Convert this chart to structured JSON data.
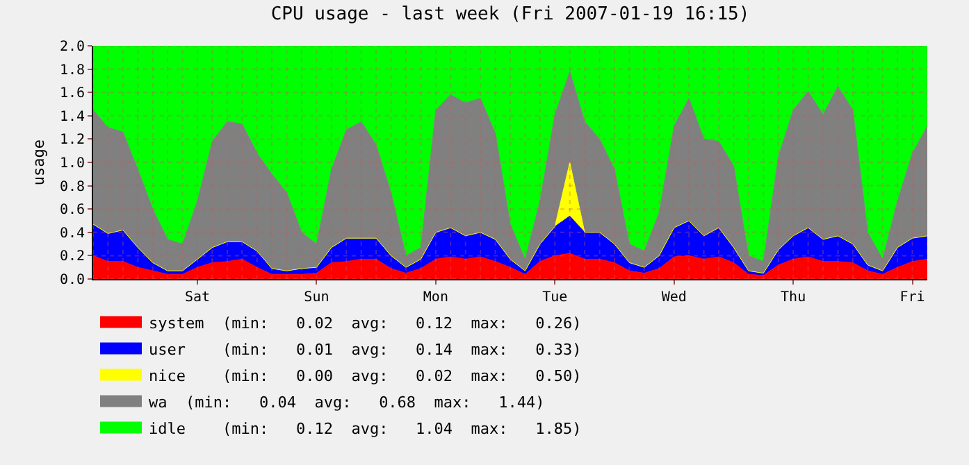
{
  "chart_data": {
    "type": "area",
    "stacked": true,
    "title": "CPU usage - last week (Fri 2007-01-19 16:15)",
    "ylabel": "usage",
    "categories": [
      null,
      null,
      null,
      null,
      null,
      null,
      null,
      "Sat",
      null,
      null,
      null,
      null,
      null,
      null,
      null,
      "Sun",
      null,
      null,
      null,
      null,
      null,
      null,
      null,
      "Mon",
      null,
      null,
      null,
      null,
      null,
      null,
      null,
      "Tue",
      null,
      null,
      null,
      null,
      null,
      null,
      null,
      "Wed",
      null,
      null,
      null,
      null,
      null,
      null,
      null,
      "Thu",
      null,
      null,
      null,
      null,
      null,
      null,
      null,
      "Fri",
      null
    ],
    "series": [
      {
        "name": "system  (min:   0.02  avg:   0.12  max:   0.26)",
        "color": "#ff0000",
        "values": [
          0.2,
          0.15,
          0.15,
          0.1,
          0.07,
          0.04,
          0.04,
          0.1,
          0.14,
          0.15,
          0.17,
          0.1,
          0.04,
          0.04,
          0.04,
          0.05,
          0.14,
          0.15,
          0.17,
          0.17,
          0.09,
          0.05,
          0.09,
          0.17,
          0.19,
          0.17,
          0.19,
          0.15,
          0.1,
          0.04,
          0.15,
          0.2,
          0.22,
          0.17,
          0.17,
          0.14,
          0.07,
          0.05,
          0.09,
          0.19,
          0.2,
          0.17,
          0.19,
          0.14,
          0.04,
          0.03,
          0.12,
          0.17,
          0.19,
          0.15,
          0.15,
          0.14,
          0.07,
          0.04,
          0.1,
          0.15,
          0.17
        ]
      },
      {
        "name": "user    (min:   0.01  avg:   0.14  max:   0.33)",
        "color": "#0000ff",
        "values": [
          0.27,
          0.24,
          0.27,
          0.17,
          0.07,
          0.03,
          0.03,
          0.07,
          0.13,
          0.17,
          0.15,
          0.14,
          0.05,
          0.03,
          0.05,
          0.05,
          0.13,
          0.2,
          0.18,
          0.18,
          0.11,
          0.05,
          0.08,
          0.23,
          0.25,
          0.2,
          0.21,
          0.19,
          0.07,
          0.03,
          0.15,
          0.25,
          0.32,
          0.23,
          0.23,
          0.16,
          0.07,
          0.05,
          0.11,
          0.25,
          0.3,
          0.2,
          0.25,
          0.13,
          0.03,
          0.02,
          0.13,
          0.2,
          0.25,
          0.19,
          0.22,
          0.16,
          0.05,
          0.03,
          0.17,
          0.2,
          0.2
        ]
      },
      {
        "name": "nice    (min:   0.00  avg:   0.02  max:   0.50)",
        "color": "#ffff00",
        "values": [
          0,
          0,
          0,
          0,
          0,
          0,
          0,
          0,
          0,
          0,
          0,
          0,
          0,
          0,
          0,
          0,
          0,
          0,
          0,
          0,
          0,
          0,
          0,
          0,
          0,
          0,
          0,
          0,
          0,
          0,
          0,
          0,
          0.46,
          0,
          0,
          0,
          0,
          0,
          0,
          0,
          0,
          0,
          0,
          0,
          0,
          0,
          0,
          0,
          0,
          0,
          0,
          0,
          0,
          0,
          0,
          0,
          0
        ]
      },
      {
        "name": "wa  (min:   0.04  avg:   0.68  max:   1.44)",
        "color": "#808080",
        "values": [
          0.98,
          0.91,
          0.84,
          0.67,
          0.46,
          0.27,
          0.23,
          0.5,
          0.91,
          1.03,
          1.01,
          0.84,
          0.81,
          0.67,
          0.31,
          0.2,
          0.67,
          0.93,
          1.0,
          0.8,
          0.54,
          0.1,
          0.1,
          1.05,
          1.14,
          1.14,
          1.15,
          0.91,
          0.3,
          0.1,
          0.37,
          0.96,
          0.78,
          0.95,
          0.8,
          0.64,
          0.16,
          0.14,
          0.37,
          0.87,
          1.05,
          0.83,
          0.74,
          0.7,
          0.13,
          0.1,
          0.8,
          1.08,
          1.17,
          1.07,
          1.28,
          1.15,
          0.28,
          0.1,
          0.4,
          0.73,
          0.94
        ]
      },
      {
        "name": "idle    (min:   0.12  avg:   1.04  max:   1.85)",
        "color": "#00ff00",
        "values": [
          0.55,
          0.7,
          0.74,
          1.06,
          1.4,
          1.66,
          1.7,
          1.33,
          0.82,
          0.65,
          0.67,
          0.92,
          1.1,
          1.26,
          1.6,
          1.7,
          1.06,
          0.72,
          0.65,
          0.85,
          1.26,
          1.8,
          1.73,
          0.55,
          0.42,
          0.49,
          0.45,
          0.75,
          1.53,
          1.83,
          1.33,
          0.59,
          0.22,
          0.65,
          0.8,
          1.06,
          1.7,
          1.76,
          1.43,
          0.69,
          0.45,
          0.8,
          0.82,
          1.03,
          1.8,
          1.85,
          0.95,
          0.55,
          0.39,
          0.59,
          0.35,
          0.55,
          1.6,
          1.83,
          1.33,
          0.92,
          0.69
        ]
      }
    ],
    "ylim": [
      0,
      2.0
    ],
    "yticks": [
      {
        "value": 0,
        "label": "0.0"
      },
      {
        "value": 0.2,
        "label": "0.2"
      },
      {
        "value": 0.4,
        "label": "0.4"
      },
      {
        "value": 0.6,
        "label": "0.6"
      },
      {
        "value": 0.8,
        "label": "0.8"
      },
      {
        "value": 1.0,
        "label": "1.0"
      },
      {
        "value": 1.2,
        "label": "1.2"
      },
      {
        "value": 1.4,
        "label": "1.4"
      },
      {
        "value": 1.6,
        "label": "1.6"
      },
      {
        "value": 1.8,
        "label": "1.8"
      },
      {
        "value": 2.0,
        "label": "2.0"
      }
    ],
    "grid": true,
    "legend": "bottom"
  }
}
